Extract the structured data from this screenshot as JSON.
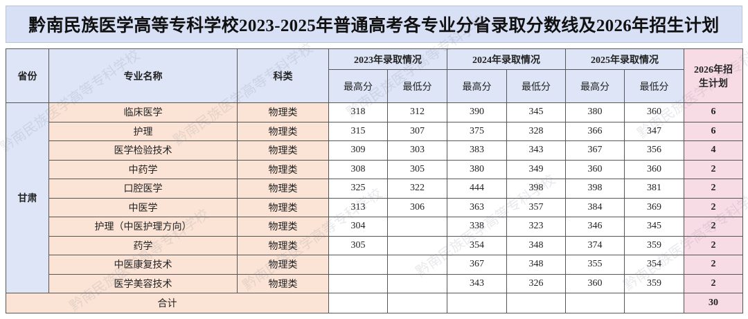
{
  "title": "黔南民族医学高等专科学校2023-2025年普通高考各专业分省录取分数线及2026年招生计划",
  "watermark": "黔南民族医学高等专科学校",
  "table": {
    "header": {
      "province": "省份",
      "major": "专业名称",
      "subject": "科类",
      "years": [
        "2023年录取情况",
        "2024年录取情况",
        "2025年录取情况"
      ],
      "subheads": [
        "最高分",
        "最低分"
      ],
      "plan": "2026年招生计划"
    },
    "province": "甘肃",
    "rows": [
      [
        "临床医学",
        "物理类",
        318,
        312,
        390,
        345,
        380,
        360,
        6
      ],
      [
        "护理",
        "物理类",
        315,
        307,
        375,
        328,
        366,
        347,
        6
      ],
      [
        "医学检验技术",
        "物理类",
        309,
        303,
        383,
        343,
        367,
        356,
        4
      ],
      [
        "中药学",
        "物理类",
        308,
        305,
        380,
        349,
        360,
        360,
        2
      ],
      [
        "口腔医学",
        "物理类",
        325,
        322,
        444,
        398,
        398,
        381,
        2
      ],
      [
        "中医学",
        "物理类",
        313,
        306,
        363,
        357,
        384,
        369,
        2
      ],
      [
        "护理（中医护理方向）",
        "物理类",
        304,
        null,
        338,
        323,
        346,
        345,
        2
      ],
      [
        "药学",
        "物理类",
        305,
        null,
        354,
        348,
        374,
        359,
        2
      ],
      [
        "中医康复技术",
        "物理类",
        null,
        null,
        367,
        348,
        355,
        354,
        2
      ],
      [
        "医学美容技术",
        "物理类",
        null,
        null,
        343,
        326,
        360,
        359,
        2
      ]
    ],
    "total": {
      "label": "合计",
      "value": 30
    }
  }
}
